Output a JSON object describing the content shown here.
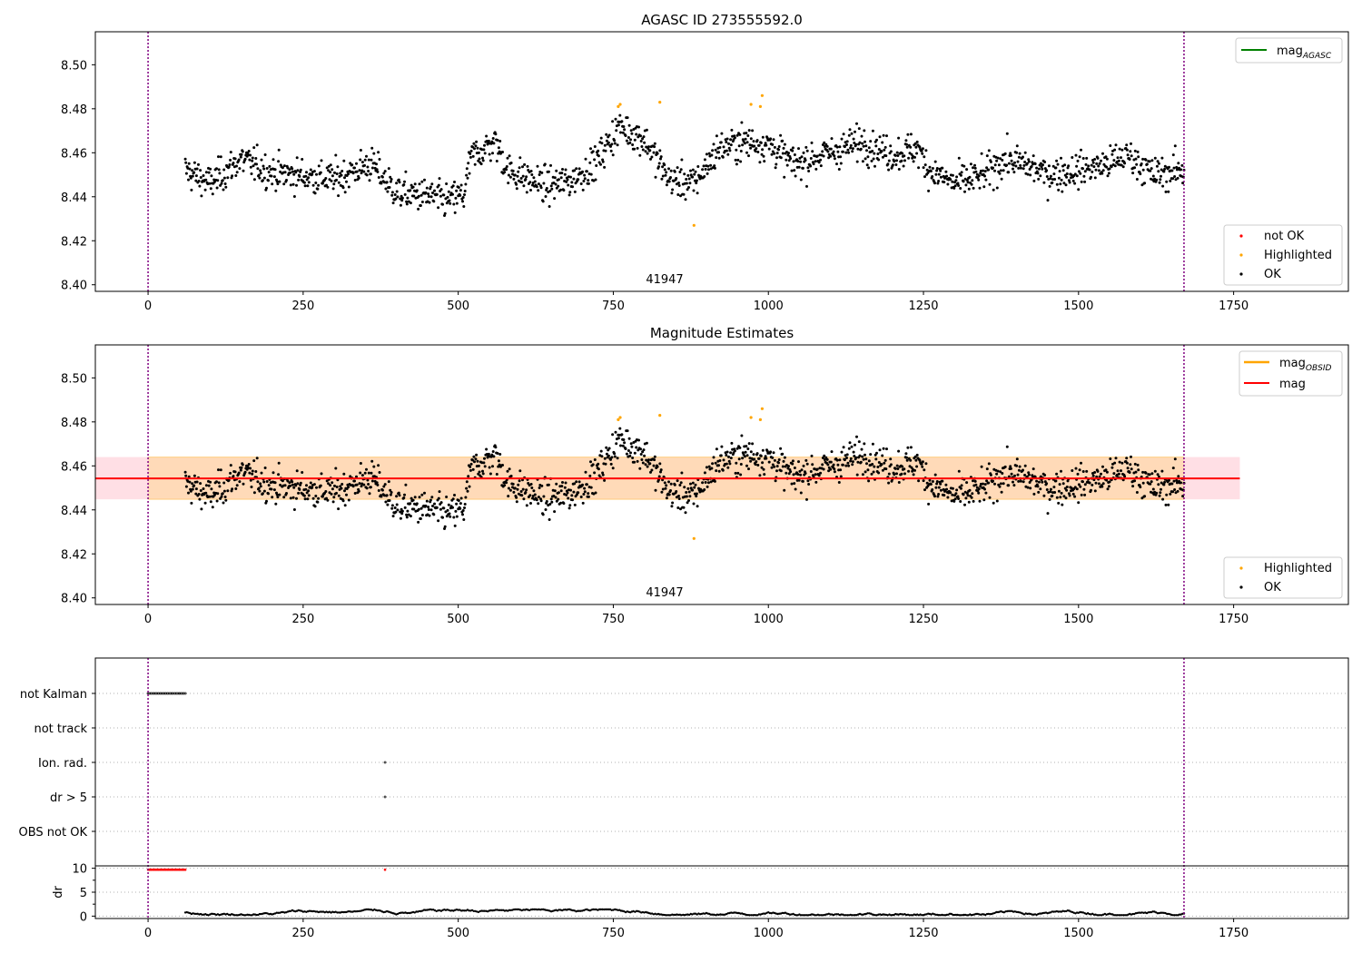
{
  "chart_data": [
    {
      "type": "scatter",
      "title": "AGASC ID 273555592.0",
      "xlim": [
        -85,
        1935
      ],
      "ylim": [
        8.397,
        8.515
      ],
      "xticks": [
        "0",
        "250",
        "500",
        "750",
        "1000",
        "1250",
        "1500",
        "1750"
      ],
      "yticks": [
        "8.40",
        "8.42",
        "8.44",
        "8.46",
        "8.48",
        "8.50"
      ],
      "obsid_label": "41947",
      "vlines": [
        0,
        1670
      ],
      "legend_lines": [
        {
          "label": "mag",
          "subscript": "AGASC",
          "color": "#008000"
        }
      ],
      "legend_points": [
        {
          "label": "not OK",
          "color": "#ff0000"
        },
        {
          "label": "Highlighted",
          "color": "#ffa500"
        },
        {
          "label": "OK",
          "color": "#000000"
        }
      ],
      "series": [
        {
          "name": "OK",
          "x_range": [
            60,
            1670
          ],
          "count": 1600,
          "note": "slowly varying around 8.455 with ±0.01 scatter"
        },
        {
          "name": "Highlighted",
          "points": [
            [
              758,
              8.481
            ],
            [
              761,
              8.482
            ],
            [
              825,
              8.483
            ],
            [
              880,
              8.427
            ],
            [
              972,
              8.482
            ],
            [
              987,
              8.481
            ],
            [
              990,
              8.486
            ]
          ]
        }
      ]
    },
    {
      "type": "scatter",
      "title": "Magnitude Estimates",
      "xlim": [
        -85,
        1935
      ],
      "ylim": [
        8.397,
        8.515
      ],
      "xticks": [
        "0",
        "250",
        "500",
        "750",
        "1000",
        "1250",
        "1500",
        "1750"
      ],
      "yticks": [
        "8.40",
        "8.42",
        "8.44",
        "8.46",
        "8.48",
        "8.50"
      ],
      "obsid_label": "41947",
      "vlines": [
        0,
        1670
      ],
      "mag": 8.4543,
      "mag_band": [
        8.4448,
        8.464
      ],
      "band_x": [
        -85,
        1760
      ],
      "obsid_band_x": [
        0,
        1670
      ],
      "legend_lines": [
        {
          "label": "mag",
          "subscript": "OBSID",
          "color": "#ffa500"
        },
        {
          "label": "mag",
          "subscript": "",
          "color": "#ff0000"
        }
      ],
      "legend_points": [
        {
          "label": "Highlighted",
          "color": "#ffa500"
        },
        {
          "label": "OK",
          "color": "#000000"
        }
      ]
    },
    {
      "type": "scatter",
      "title": "",
      "flag_labels": [
        "not Kalman",
        "not track",
        "Ion. rad.",
        "dr > 5",
        "OBS not OK"
      ],
      "flag_points": [
        {
          "flag": "not Kalman",
          "x_range": [
            0,
            60
          ]
        },
        {
          "flag": "Ion. rad.",
          "x": 382
        },
        {
          "flag": "dr > 5",
          "x": 382
        }
      ],
      "dr_ylabel": "dr",
      "dr_ylim": [
        -0.5,
        10.5
      ],
      "dr_yticks": [
        "0",
        "5",
        "10"
      ],
      "dr_high": {
        "value": 9.7,
        "x_range": [
          0,
          60
        ],
        "extra_x": 382,
        "color": "#ff0000"
      },
      "dr_low": {
        "value_range": [
          0.2,
          1.4
        ],
        "x_range": [
          60,
          1670
        ],
        "color": "#000000"
      },
      "xticks": [
        "0",
        "250",
        "500",
        "750",
        "1000",
        "1250",
        "1500",
        "1750"
      ]
    }
  ]
}
